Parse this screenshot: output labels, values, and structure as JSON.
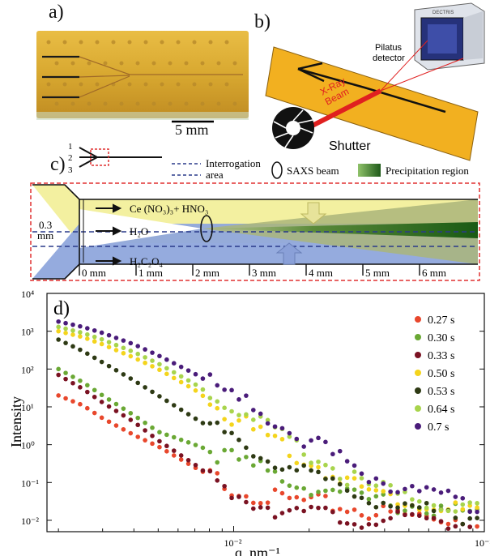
{
  "panel_a": {
    "label": "a)",
    "scale_bar": "5 mm",
    "chip_color": "#d8a830"
  },
  "panel_b": {
    "label": "b)",
    "detector_name_line1": "Pilatus",
    "detector_name_line2": "detector",
    "detector_brand": "DECTRIS",
    "beam_line1": "X-Ray",
    "beam_line2": "Beam",
    "shutter": "Shutter",
    "beam_color": "#e02020",
    "plate_color": "#f2b020"
  },
  "panel_c": {
    "label": "c)",
    "inlets": [
      "1",
      "2",
      "3"
    ],
    "interrogation_line1": "Interrogation",
    "interrogation_line2": "area",
    "saxs_legend": "SAXS beam",
    "precip_legend": "Precipitation region",
    "stream1": "Ce (NO₃)₃+ HNO₃",
    "stream2": "H₂O",
    "stream3": "H₂C₂O₄",
    "width_value": "0.3",
    "width_unit": "mm",
    "distance_ticks": [
      "0 mm",
      "1 mm",
      "2 mm",
      "3 mm",
      "4 mm",
      "5 mm",
      "6 mm"
    ],
    "colors": {
      "top": "#f3f0a0",
      "bottom": "#8fa6dc",
      "frame": "#e03030",
      "green": "#2f7a2a"
    }
  },
  "chart_data": {
    "type": "scatter",
    "panel_label": "d)",
    "xlabel": "q, nm⁻¹",
    "ylabel": "Intensity",
    "xscale": "log",
    "yscale": "log",
    "xlim": [
      0.0018,
      0.1
    ],
    "ylim": [
      0.005,
      10000
    ],
    "x_tick_labels": [
      {
        "value": 0.01,
        "label": "10⁻²"
      },
      {
        "value": 0.1,
        "label": "10⁻¹"
      }
    ],
    "y_tick_labels": [
      {
        "value": 0.01,
        "label": "10⁻²"
      },
      {
        "value": 0.1,
        "label": "10⁻¹"
      },
      {
        "value": 1,
        "label": "10⁰"
      },
      {
        "value": 10,
        "label": "10¹"
      },
      {
        "value": 100,
        "label": "10²"
      },
      {
        "value": 1000,
        "label": "10³"
      },
      {
        "value": 10000,
        "label": "10⁴"
      }
    ],
    "legend_position": "top-right",
    "series": [
      {
        "name": "0.27 s",
        "color": "#e8472c",
        "x": [
          0.002,
          0.0025,
          0.003,
          0.004,
          0.005,
          0.007,
          0.01,
          0.015,
          0.02,
          0.03,
          0.04,
          0.06,
          0.1
        ],
        "y": [
          20,
          11,
          5,
          1.8,
          0.9,
          0.25,
          0.07,
          0.035,
          0.03,
          0.02,
          0.015,
          0.012,
          0.01
        ]
      },
      {
        "name": "0.30  s",
        "color": "#6aa834",
        "x": [
          0.002,
          0.0025,
          0.003,
          0.004,
          0.005,
          0.007,
          0.01,
          0.015,
          0.02,
          0.03,
          0.04,
          0.06,
          0.1
        ],
        "y": [
          100,
          45,
          20,
          6,
          2.2,
          1.0,
          0.4,
          0.15,
          0.08,
          0.04,
          0.03,
          0.02,
          0.013
        ]
      },
      {
        "name": "0.33 s",
        "color": "#7a1222",
        "x": [
          0.002,
          0.0025,
          0.003,
          0.004,
          0.005,
          0.007,
          0.01,
          0.015,
          0.02,
          0.03,
          0.04,
          0.06,
          0.1
        ],
        "y": [
          70,
          30,
          13,
          4,
          1.3,
          0.3,
          0.05,
          0.02,
          0.015,
          0.011,
          0.01,
          0.009,
          0.008
        ]
      },
      {
        "name": "0.50 s",
        "color": "#f4d41c",
        "x": [
          0.002,
          0.0025,
          0.003,
          0.004,
          0.005,
          0.007,
          0.01,
          0.015,
          0.02,
          0.03,
          0.04,
          0.06,
          0.1
        ],
        "y": [
          1000,
          700,
          450,
          200,
          100,
          28,
          5,
          1.0,
          0.35,
          0.09,
          0.045,
          0.025,
          0.015
        ]
      },
      {
        "name": "0.53 s",
        "color": "#2e3a14",
        "x": [
          0.002,
          0.0025,
          0.003,
          0.004,
          0.005,
          0.007,
          0.01,
          0.015,
          0.02,
          0.03,
          0.04,
          0.06,
          0.1
        ],
        "y": [
          600,
          300,
          150,
          50,
          20,
          5,
          1.2,
          0.35,
          0.15,
          0.06,
          0.03,
          0.018,
          0.012
        ]
      },
      {
        "name": "0.64 s",
        "color": "#a8d44c",
        "x": [
          0.002,
          0.0025,
          0.003,
          0.004,
          0.005,
          0.007,
          0.01,
          0.015,
          0.02,
          0.03,
          0.04,
          0.06,
          0.1
        ],
        "y": [
          1300,
          900,
          600,
          280,
          140,
          40,
          8,
          1.8,
          0.55,
          0.12,
          0.06,
          0.03,
          0.018
        ]
      },
      {
        "name": "0.7 s",
        "color": "#4a1c7a",
        "x": [
          0.002,
          0.0025,
          0.003,
          0.004,
          0.005,
          0.007,
          0.01,
          0.015,
          0.02,
          0.03,
          0.04,
          0.06,
          0.1
        ],
        "y": [
          1800,
          1300,
          900,
          450,
          230,
          75,
          18,
          4,
          1.2,
          0.25,
          0.1,
          0.045,
          0.022
        ]
      }
    ]
  }
}
